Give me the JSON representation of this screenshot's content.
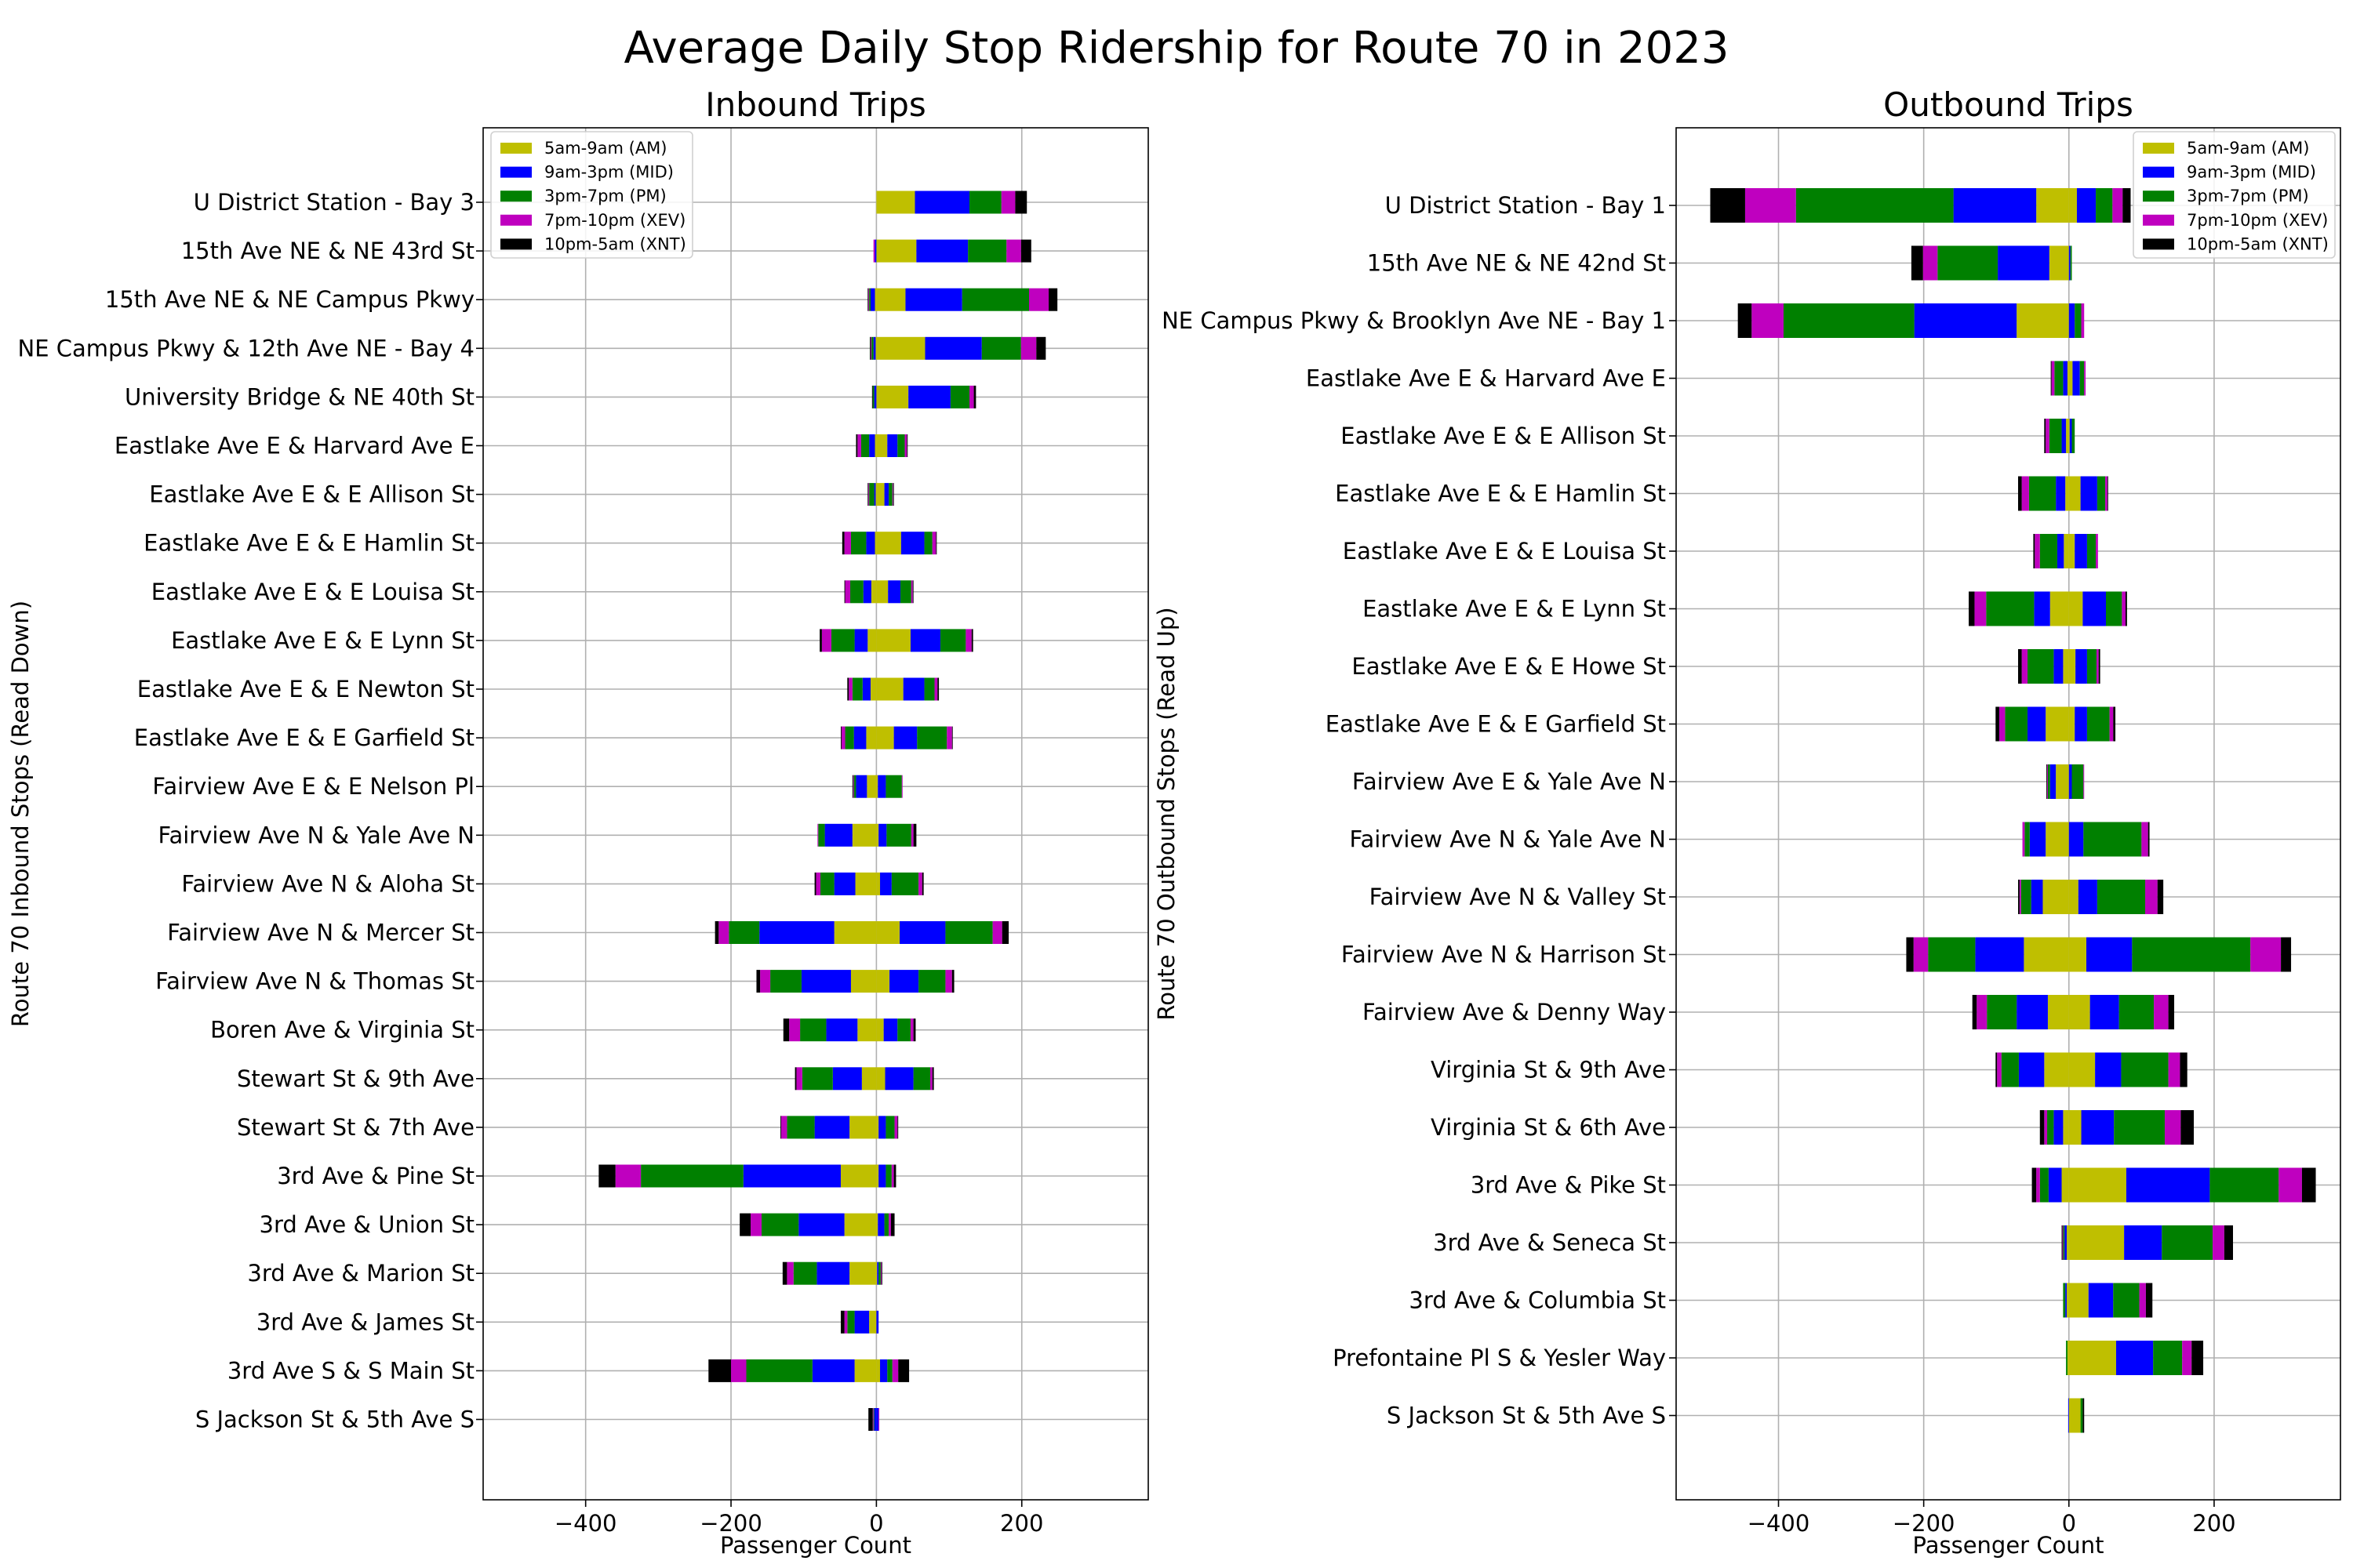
{
  "title": "Average Daily Stop Ridership for Route 70 in 2023",
  "colors": {
    "AM": "#bfbf00",
    "MID": "#0000ff",
    "PM": "#008000",
    "XEV": "#bf00bf",
    "XNT": "#000000"
  },
  "chart_data": [
    {
      "type": "bar",
      "orientation": "horizontal-stacked-diverging",
      "title": "Inbound Trips",
      "xlabel": "Passenger Count",
      "ylabel": "Route 70 Inbound Stops (Read Down)",
      "xlim": [
        -541,
        374
      ],
      "xticks": [
        -400,
        -200,
        0,
        200
      ],
      "grid": true,
      "legend": "upper-left",
      "categories": [
        "U District Station - Bay 3",
        "15th Ave NE & NE 43rd St",
        "15th Ave NE & NE Campus Pkwy",
        "NE Campus Pkwy & 12th Ave NE - Bay 4",
        "University Bridge & NE 40th St",
        "Eastlake Ave E & Harvard Ave E",
        "Eastlake Ave E & E Allison St",
        "Eastlake Ave E & E Hamlin St",
        "Eastlake Ave E & E Louisa St",
        "Eastlake Ave E & E Lynn St",
        "Eastlake Ave E & E Newton St",
        "Eastlake Ave E & E Garfield St",
        "Fairview Ave E & E Nelson Pl",
        "Fairview Ave N & Yale Ave N",
        "Fairview Ave N & Aloha St",
        "Fairview Ave N & Mercer St",
        "Fairview Ave N & Thomas St",
        "Boren Ave & Virginia St",
        "Stewart St & 9th Ave",
        "Stewart St & 7th Ave",
        "3rd Ave & Pine St",
        "3rd Ave & Union St",
        "3rd Ave & Marion St",
        "3rd Ave & James St",
        "3rd Ave S & S Main St",
        "S Jackson St & 5th Ave S"
      ],
      "series": [
        {
          "name": "5am-9am (AM)",
          "key": "AM",
          "positive": [
            53,
            55,
            40,
            67,
            44,
            15,
            11,
            34,
            16,
            47,
            37,
            24,
            2,
            3,
            5,
            32,
            18,
            10,
            12,
            3,
            3,
            2,
            1,
            0,
            5,
            0
          ],
          "negative": [
            0,
            0,
            -2,
            -1,
            0,
            -2,
            -1,
            -2,
            -7,
            -12,
            -8,
            -14,
            -13,
            -33,
            -29,
            -58,
            -35,
            -26,
            -20,
            -37,
            -49,
            -44,
            -37,
            -10,
            -30,
            0
          ]
        },
        {
          "name": "9am-3pm (MID)",
          "key": "MID",
          "positive": [
            75,
            71,
            78,
            78,
            58,
            14,
            6,
            32,
            17,
            41,
            29,
            32,
            11,
            11,
            16,
            63,
            40,
            19,
            39,
            10,
            10,
            9,
            2,
            3,
            10,
            3
          ],
          "negative": [
            0,
            -2,
            -6,
            -3,
            -3,
            -8,
            -2,
            -12,
            -11,
            -18,
            -11,
            -17,
            -15,
            -38,
            -29,
            -103,
            -68,
            -43,
            -40,
            -48,
            -134,
            -63,
            -45,
            -20,
            -58,
            -3
          ]
        },
        {
          "name": "3pm-7pm (PM)",
          "key": "PM",
          "positive": [
            44,
            53,
            92,
            54,
            26,
            10,
            5,
            11,
            15,
            35,
            14,
            41,
            22,
            34,
            37,
            65,
            37,
            18,
            23,
            12,
            8,
            6,
            3,
            0,
            7,
            0
          ],
          "negative": [
            0,
            0,
            -2,
            -3,
            -2,
            -11,
            -7,
            -21,
            -18,
            -32,
            -14,
            -12,
            -3,
            -9,
            -19,
            -42,
            -43,
            -36,
            -42,
            -38,
            -141,
            -51,
            -32,
            -10,
            -91,
            -1
          ]
        },
        {
          "name": "7pm-10pm (XEV)",
          "key": "XEV",
          "positive": [
            19,
            20,
            27,
            21,
            6,
            3,
            1,
            5,
            2,
            8,
            4,
            7,
            1,
            3,
            5,
            13,
            9,
            4,
            3,
            4,
            3,
            3,
            1,
            0,
            8,
            1
          ],
          "negative": [
            0,
            -2,
            -1,
            -1,
            0,
            -5,
            -1,
            -9,
            -7,
            -13,
            -5,
            -5,
            -1,
            -1,
            -6,
            -14,
            -14,
            -15,
            -8,
            -8,
            -35,
            -15,
            -9,
            -4,
            -21,
            -1
          ]
        },
        {
          "name": "10pm-5am (XNT)",
          "key": "XNT",
          "positive": [
            16,
            14,
            12,
            13,
            3,
            1,
            1,
            1,
            1,
            2,
            2,
            1,
            0,
            4,
            2,
            9,
            3,
            3,
            2,
            1,
            3,
            5,
            1,
            0,
            15,
            0
          ],
          "negative": [
            0,
            0,
            -1,
            -1,
            -1,
            -2,
            -1,
            -3,
            -1,
            -3,
            -2,
            -1,
            -1,
            0,
            -2,
            -5,
            -5,
            -8,
            -2,
            -1,
            -23,
            -15,
            -6,
            -5,
            -31,
            -6
          ]
        }
      ]
    },
    {
      "type": "bar",
      "orientation": "horizontal-stacked-diverging",
      "title": "Outbound Trips",
      "xlabel": "Passenger Count",
      "ylabel": "Route 70 Outbound Stops (Read Up)",
      "xlim": [
        -541,
        374
      ],
      "xticks": [
        -400,
        -200,
        0,
        200
      ],
      "grid": true,
      "legend": "upper-right",
      "categories": [
        "U District Station - Bay 1",
        "15th Ave NE & NE 42nd St",
        "NE Campus Pkwy & Brooklyn Ave NE - Bay 1",
        "Eastlake Ave E & Harvard Ave E",
        "Eastlake Ave E & E Allison St",
        "Eastlake Ave E & E Hamlin St",
        "Eastlake Ave E & E Louisa St",
        "Eastlake Ave E & E Lynn St",
        "Eastlake Ave E & E Howe St",
        "Eastlake Ave E & E Garfield St",
        "Fairview Ave E & Yale Ave N",
        "Fairview Ave N & Yale Ave N",
        "Fairview Ave N & Valley St",
        "Fairview Ave N & Harrison St",
        "Fairview Ave & Denny Way",
        "Virginia St & 9th Ave",
        "Virginia St & 6th Ave",
        "3rd Ave & Pike St",
        "3rd Ave & Seneca St",
        "3rd Ave & Columbia St",
        "Prefontaine Pl S & Yesler Way",
        "S Jackson St & 5th Ave S"
      ],
      "series": [
        {
          "name": "5am-9am (AM)",
          "key": "AM",
          "positive": [
            11,
            0,
            0,
            5,
            1,
            16,
            8,
            19,
            9,
            8,
            0,
            0,
            13,
            24,
            29,
            36,
            17,
            79,
            76,
            27,
            65,
            16
          ],
          "negative": [
            -45,
            -27,
            -72,
            -2,
            -4,
            -5,
            -7,
            -26,
            -8,
            -32,
            -18,
            -32,
            -36,
            -62,
            -29,
            -34,
            -8,
            -10,
            -3,
            -3,
            -2,
            0
          ]
        },
        {
          "name": "9am-3pm (MID)",
          "key": "MID",
          "positive": [
            26,
            2,
            8,
            10,
            3,
            23,
            17,
            32,
            16,
            17,
            4,
            20,
            26,
            63,
            40,
            36,
            45,
            115,
            52,
            34,
            51,
            0
          ],
          "negative": [
            -114,
            -71,
            -141,
            -6,
            -6,
            -13,
            -9,
            -22,
            -13,
            -25,
            -8,
            -22,
            -16,
            -67,
            -43,
            -35,
            -13,
            -18,
            -3,
            -2,
            0,
            -1
          ]
        },
        {
          "name": "3pm-7pm (PM)",
          "key": "PM",
          "positive": [
            23,
            2,
            9,
            6,
            4,
            11,
            12,
            22,
            13,
            31,
            16,
            80,
            66,
            163,
            48,
            65,
            70,
            95,
            70,
            36,
            40,
            3
          ],
          "negative": [
            -217,
            -83,
            -180,
            -12,
            -17,
            -37,
            -24,
            -66,
            -36,
            -31,
            -3,
            -7,
            -14,
            -65,
            -41,
            -24,
            -9,
            -12,
            -2,
            -3,
            -2,
            0
          ]
        },
        {
          "name": "7pm-10pm (XEV)",
          "key": "XEV",
          "positive": [
            14,
            0,
            4,
            2,
            0,
            3,
            3,
            5,
            3,
            5,
            1,
            9,
            17,
            42,
            20,
            16,
            22,
            32,
            16,
            9,
            13,
            0
          ],
          "negative": [
            -70,
            -20,
            -44,
            -4,
            -5,
            -10,
            -7,
            -16,
            -8,
            -8,
            -1,
            -3,
            -2,
            -20,
            -14,
            -6,
            -4,
            -5,
            -1,
            0,
            0,
            0
          ]
        },
        {
          "name": "10pm-5am (XNT)",
          "key": "XNT",
          "positive": [
            11,
            0,
            0,
            0,
            0,
            1,
            0,
            2,
            2,
            3,
            0,
            2,
            8,
            14,
            8,
            10,
            18,
            19,
            12,
            9,
            16,
            2
          ],
          "negative": [
            -48,
            -16,
            -19,
            -1,
            -2,
            -5,
            -2,
            -8,
            -5,
            -5,
            -1,
            0,
            -2,
            -10,
            -6,
            -2,
            -6,
            -6,
            -1,
            0,
            0,
            0
          ]
        }
      ]
    }
  ]
}
